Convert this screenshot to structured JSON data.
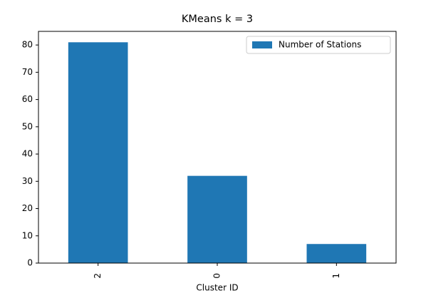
{
  "chart_data": {
    "type": "bar",
    "title": "KMeans k = 3",
    "x_label": "Cluster ID",
    "categories": [
      "2",
      "0",
      "1"
    ],
    "series": [
      {
        "name": "Number of Stations",
        "color": "#1f77b4",
        "values": [
          81,
          32,
          7
        ]
      }
    ],
    "ylim": [
      0,
      85
    ],
    "yticks": [
      0,
      10,
      20,
      30,
      40,
      50,
      60,
      70,
      80
    ],
    "grid": false,
    "legend_position": "upper right"
  }
}
